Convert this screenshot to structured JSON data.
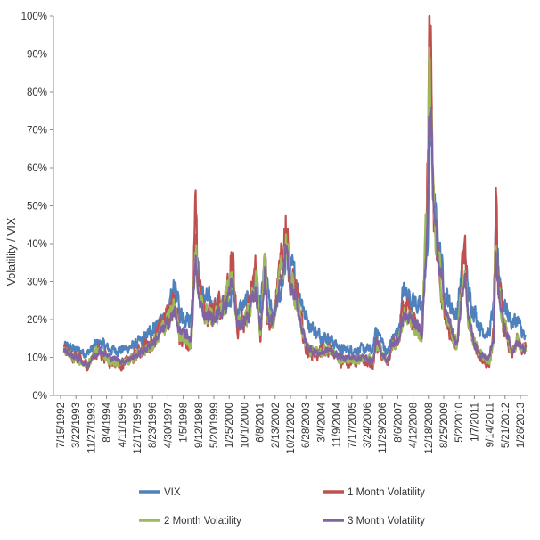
{
  "chart_data": {
    "type": "line",
    "title": "",
    "xlabel": "",
    "ylabel": "Volatility / VIX",
    "ylim": [
      0,
      100
    ],
    "y_ticks": [
      "0%",
      "10%",
      "20%",
      "30%",
      "40%",
      "50%",
      "60%",
      "70%",
      "80%",
      "90%",
      "100%"
    ],
    "x_range": [
      "1992-07-15",
      "2013-01-26"
    ],
    "x_tick_labels": [
      "7/15/1992",
      "3/22/1993",
      "11/27/1993",
      "8/4/1994",
      "4/11/1995",
      "12/17/1995",
      "8/23/1996",
      "4/30/1997",
      "1/5/1998",
      "9/12/1998",
      "5/20/1999",
      "1/25/2000",
      "10/1/2000",
      "6/8/2001",
      "2/13/2002",
      "10/21/2002",
      "6/28/2003",
      "3/4/2004",
      "11/9/2004",
      "7/17/2005",
      "3/24/2006",
      "11/29/2006",
      "8/6/2007",
      "4/12/2008",
      "12/18/2008",
      "8/25/2009",
      "5/2/2010",
      "1/7/2011",
      "9/14/2011",
      "5/21/2012",
      "1/26/2013"
    ],
    "grid": false,
    "legend_position": "bottom",
    "time_points": [
      1993.0,
      1993.5,
      1994.0,
      1994.5,
      1995.0,
      1995.5,
      1996.0,
      1996.5,
      1997.0,
      1997.5,
      1997.8,
      1998.0,
      1998.5,
      1998.7,
      1998.8,
      1999.0,
      1999.5,
      2000.0,
      2000.3,
      2000.5,
      2001.0,
      2001.3,
      2001.5,
      2001.7,
      2001.8,
      2002.0,
      2002.5,
      2002.6,
      2002.8,
      2003.0,
      2003.3,
      2003.5,
      2004.0,
      2004.5,
      2005.0,
      2005.5,
      2006.0,
      2006.4,
      2006.5,
      2007.0,
      2007.2,
      2007.5,
      2007.7,
      2008.0,
      2008.3,
      2008.5,
      2008.75,
      2008.82,
      2008.9,
      2009.0,
      2009.2,
      2009.5,
      2009.8,
      2010.0,
      2010.35,
      2010.5,
      2010.8,
      2011.0,
      2011.4,
      2011.6,
      2011.7,
      2011.8,
      2012.0,
      2012.4,
      2012.6,
      2012.9,
      2013.0
    ],
    "series": [
      {
        "name": "VIX",
        "color": "#4f81bd",
        "values": [
          13,
          12,
          11,
          14,
          12,
          12,
          13,
          15,
          19,
          20,
          30,
          22,
          20,
          40,
          33,
          26,
          24,
          24,
          28,
          22,
          25,
          30,
          22,
          35,
          28,
          21,
          28,
          40,
          34,
          31,
          25,
          20,
          16,
          15,
          12,
          12,
          12,
          12,
          18,
          11,
          15,
          17,
          28,
          26,
          24,
          22,
          40,
          66,
          72,
          50,
          42,
          27,
          23,
          21,
          39,
          27,
          22,
          18,
          16,
          23,
          43,
          35,
          25,
          19,
          20,
          16,
          14
        ]
      },
      {
        "name": "1 Month Volatility",
        "color": "#c0504d",
        "values": [
          12,
          10,
          8,
          12,
          9,
          8,
          10,
          13,
          15,
          22,
          25,
          16,
          14,
          48,
          30,
          22,
          21,
          27,
          35,
          18,
          22,
          33,
          15,
          40,
          22,
          18,
          38,
          47,
          30,
          28,
          18,
          12,
          11,
          12,
          9,
          9,
          9,
          8,
          14,
          8,
          13,
          14,
          23,
          20,
          18,
          16,
          60,
          96,
          80,
          48,
          35,
          20,
          15,
          12,
          40,
          20,
          12,
          10,
          8,
          15,
          49,
          30,
          20,
          10,
          14,
          12,
          12
        ]
      },
      {
        "name": "2 Month Volatility",
        "color": "#9bbb59",
        "values": [
          12,
          10,
          8,
          12,
          9,
          8,
          10,
          12,
          15,
          20,
          23,
          16,
          14,
          40,
          28,
          22,
          20,
          25,
          32,
          18,
          22,
          30,
          16,
          36,
          22,
          19,
          35,
          42,
          30,
          27,
          18,
          13,
          11,
          12,
          9,
          9,
          10,
          9,
          14,
          9,
          13,
          15,
          22,
          20,
          18,
          16,
          55,
          86,
          78,
          50,
          36,
          22,
          16,
          13,
          35,
          21,
          13,
          11,
          9,
          15,
          42,
          30,
          20,
          11,
          14,
          12,
          12
        ]
      },
      {
        "name": "3 Month Volatility",
        "color": "#8064a2",
        "values": [
          12,
          10,
          8,
          12,
          10,
          9,
          10,
          12,
          15,
          19,
          22,
          17,
          15,
          35,
          27,
          22,
          20,
          24,
          30,
          18,
          21,
          28,
          17,
          33,
          22,
          19,
          32,
          38,
          29,
          26,
          18,
          13,
          11,
          12,
          10,
          10,
          10,
          9,
          14,
          9,
          13,
          15,
          21,
          20,
          18,
          16,
          50,
          76,
          74,
          50,
          38,
          23,
          17,
          13,
          32,
          21,
          13,
          11,
          10,
          15,
          38,
          30,
          20,
          12,
          14,
          12,
          12
        ]
      }
    ]
  }
}
